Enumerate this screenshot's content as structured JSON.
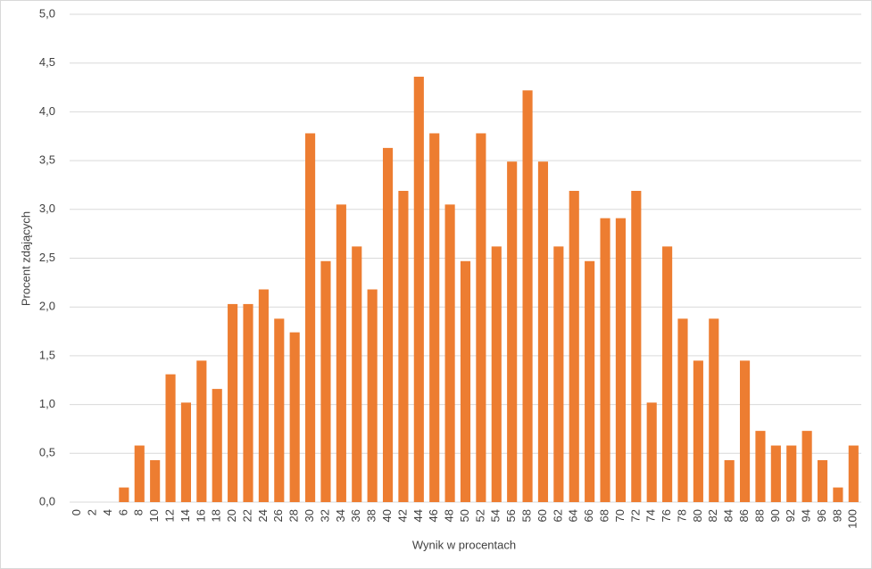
{
  "chart_data": {
    "type": "bar",
    "y_label": "Procent zdających",
    "x_label": "Wynik w procentach",
    "categories": [
      "0",
      "2",
      "4",
      "6",
      "8",
      "10",
      "12",
      "14",
      "16",
      "18",
      "20",
      "22",
      "24",
      "26",
      "28",
      "30",
      "32",
      "34",
      "36",
      "38",
      "40",
      "42",
      "44",
      "46",
      "48",
      "50",
      "52",
      "54",
      "56",
      "58",
      "60",
      "62",
      "64",
      "66",
      "68",
      "70",
      "72",
      "74",
      "76",
      "78",
      "80",
      "82",
      "84",
      "86",
      "88",
      "90",
      "92",
      "94",
      "96",
      "98",
      "100"
    ],
    "values": [
      0,
      0,
      0,
      0.15,
      0.58,
      0.43,
      1.31,
      1.02,
      1.45,
      1.16,
      2.03,
      2.03,
      2.18,
      1.88,
      1.74,
      3.78,
      2.47,
      3.05,
      2.62,
      2.18,
      3.63,
      3.19,
      4.36,
      3.78,
      3.05,
      2.47,
      3.78,
      2.62,
      3.49,
      4.22,
      3.49,
      2.62,
      3.19,
      2.47,
      2.91,
      2.91,
      3.19,
      1.02,
      2.62,
      1.88,
      1.45,
      1.88,
      0.43,
      1.45,
      0.73,
      0.58,
      0.58,
      0.73,
      0.43,
      0.15,
      0.58
    ],
    "color": "#ed7d31",
    "ylim": [
      0,
      5
    ],
    "yticks": [
      {
        "value": 0,
        "label": "0,0"
      },
      {
        "value": 0.5,
        "label": "0,5"
      },
      {
        "value": 1,
        "label": "1,0"
      },
      {
        "value": 1.5,
        "label": "1,5"
      },
      {
        "value": 2,
        "label": "2,0"
      },
      {
        "value": 2.5,
        "label": "2,5"
      },
      {
        "value": 3,
        "label": "3,0"
      },
      {
        "value": 3.5,
        "label": "3,5"
      },
      {
        "value": 4,
        "label": "4,0"
      },
      {
        "value": 4.5,
        "label": "4,5"
      },
      {
        "value": 5,
        "label": "5,0"
      }
    ],
    "grid": true
  }
}
